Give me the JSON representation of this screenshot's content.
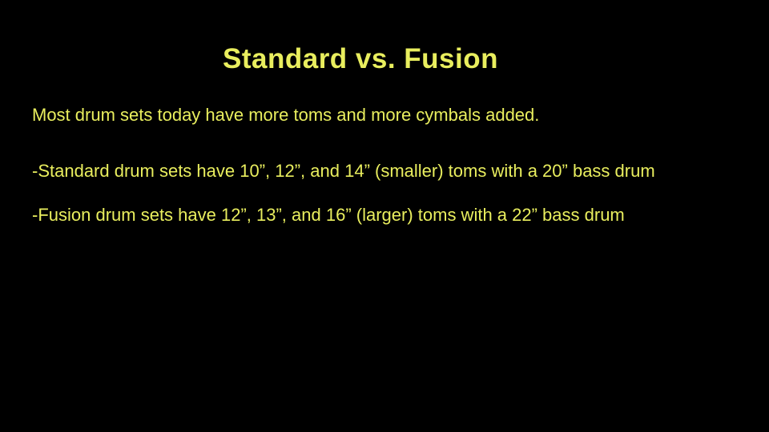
{
  "slide": {
    "background_color": "#000000",
    "text_color": "#e9ee5e",
    "title": "Standard vs. Fusion",
    "intro": "Most drum sets today have more toms and more cymbals added.",
    "bullets": [
      "-Standard drum sets have 10”, 12”, and 14” (smaller) toms with a 20” bass drum",
      "-Fusion drum sets have 12”, 13”, and 16” (larger) toms with a 22” bass drum"
    ]
  }
}
